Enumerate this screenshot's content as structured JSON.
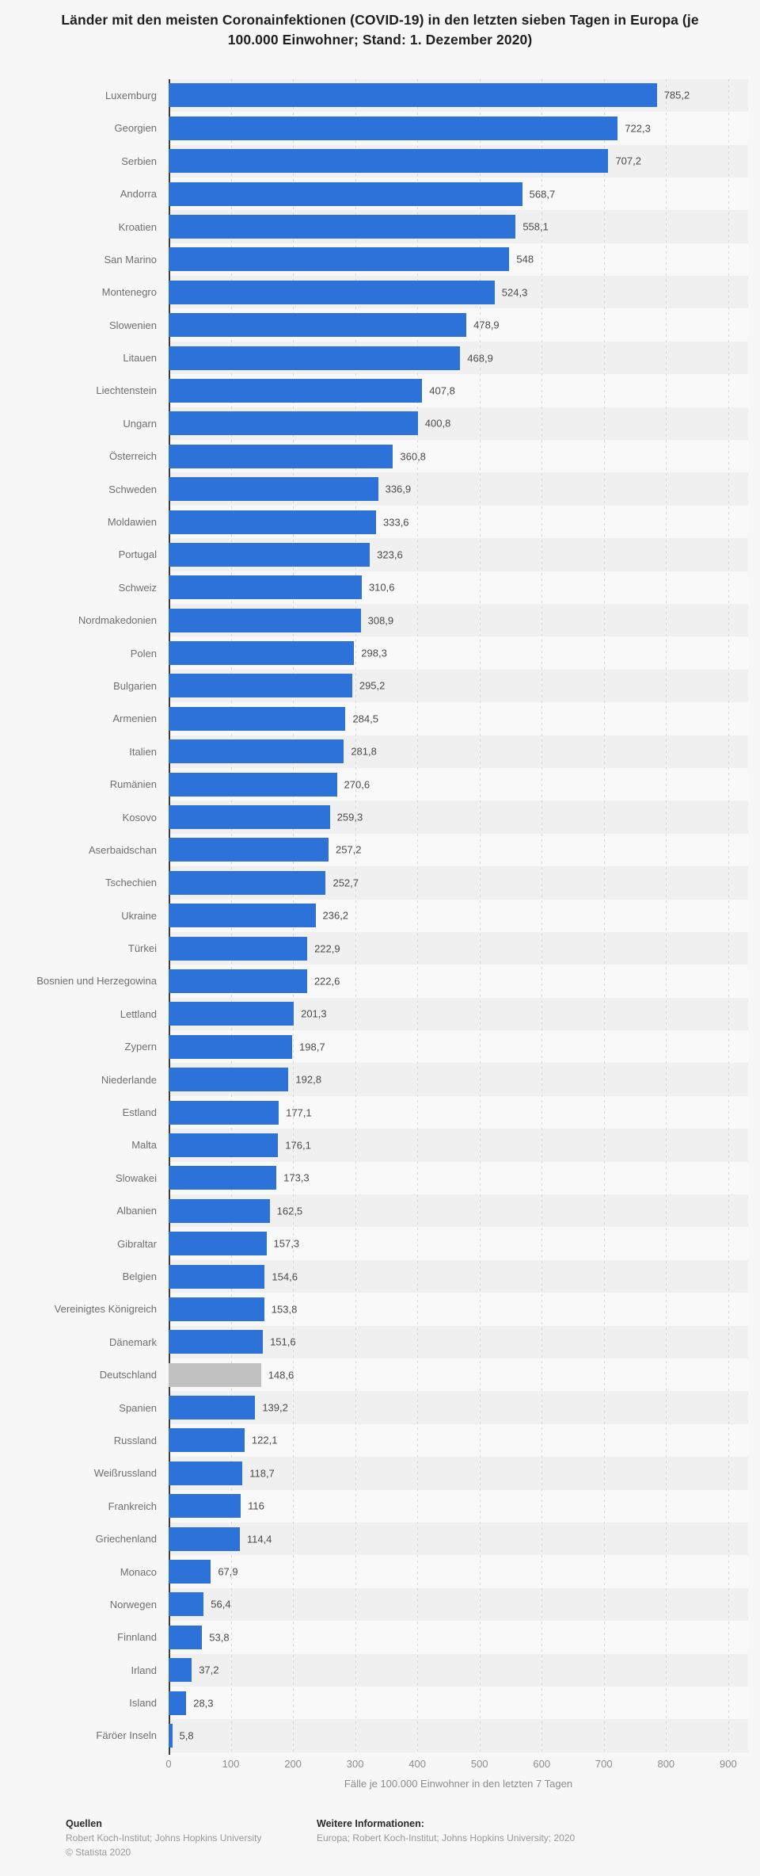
{
  "chart_data": {
    "type": "bar",
    "orientation": "horizontal",
    "title": "Länder mit den meisten Coronainfektionen (COVID-19) in den letzten sieben Tagen in Europa (je 100.000 Einwohner; Stand: 1. Dezember 2020)",
    "xlabel": "Fälle je 100.000 Einwohner in den letzten 7 Tagen",
    "xlim": [
      0,
      900
    ],
    "xticks": [
      0,
      100,
      200,
      300,
      400,
      500,
      600,
      700,
      800,
      900
    ],
    "grid": true,
    "legend": "none",
    "bar_color": "#2d72d8",
    "highlight_color": "#c1c1c1",
    "highlight_category": "Deutschland",
    "categories": [
      "Luxemburg",
      "Georgien",
      "Serbien",
      "Andorra",
      "Kroatien",
      "San Marino",
      "Montenegro",
      "Slowenien",
      "Litauen",
      "Liechtenstein",
      "Ungarn",
      "Österreich",
      "Schweden",
      "Moldawien",
      "Portugal",
      "Schweiz",
      "Nordmakedonien",
      "Polen",
      "Bulgarien",
      "Armenien",
      "Italien",
      "Rumänien",
      "Kosovo",
      "Aserbaidschan",
      "Tschechien",
      "Ukraine",
      "Türkei",
      "Bosnien und Herzegowina",
      "Lettland",
      "Zypern",
      "Niederlande",
      "Estland",
      "Malta",
      "Slowakei",
      "Albanien",
      "Gibraltar",
      "Belgien",
      "Vereinigtes Königreich",
      "Dänemark",
      "Deutschland",
      "Spanien",
      "Russland",
      "Weißrussland",
      "Frankreich",
      "Griechenland",
      "Monaco",
      "Norwegen",
      "Finnland",
      "Irland",
      "Island",
      "Färöer Inseln"
    ],
    "values": [
      785.2,
      722.3,
      707.2,
      568.7,
      558.1,
      548,
      524.3,
      478.9,
      468.9,
      407.8,
      400.8,
      360.8,
      336.9,
      333.6,
      323.6,
      310.6,
      308.9,
      298.3,
      295.2,
      284.5,
      281.8,
      270.6,
      259.3,
      257.2,
      252.7,
      236.2,
      222.9,
      222.6,
      201.3,
      198.7,
      192.8,
      177.1,
      176.1,
      173.3,
      162.5,
      157.3,
      154.6,
      153.8,
      151.6,
      148.6,
      139.2,
      122.1,
      118.7,
      116,
      114.4,
      67.9,
      56.4,
      53.8,
      37.2,
      28.3,
      5.8
    ],
    "value_labels": [
      "785,2",
      "722,3",
      "707,2",
      "568,7",
      "558,1",
      "548",
      "524,3",
      "478,9",
      "468,9",
      "407,8",
      "400,8",
      "360,8",
      "336,9",
      "333,6",
      "323,6",
      "310,6",
      "308,9",
      "298,3",
      "295,2",
      "284,5",
      "281,8",
      "270,6",
      "259,3",
      "257,2",
      "252,7",
      "236,2",
      "222,9",
      "222,6",
      "201,3",
      "198,7",
      "192,8",
      "177,1",
      "176,1",
      "173,3",
      "162,5",
      "157,3",
      "154,6",
      "153,8",
      "151,6",
      "148,6",
      "139,2",
      "122,1",
      "118,7",
      "116",
      "114,4",
      "67,9",
      "56,4",
      "53,8",
      "37,2",
      "28,3",
      "5,8"
    ]
  },
  "footer": {
    "sources_heading": "Quellen",
    "sources": "Robert Koch-Institut; Johns Hopkins University",
    "copyright": "© Statista 2020",
    "info_heading": "Weitere Informationen:",
    "info": "Europa; Robert Koch-Institut; Johns Hopkins University; 2020"
  }
}
